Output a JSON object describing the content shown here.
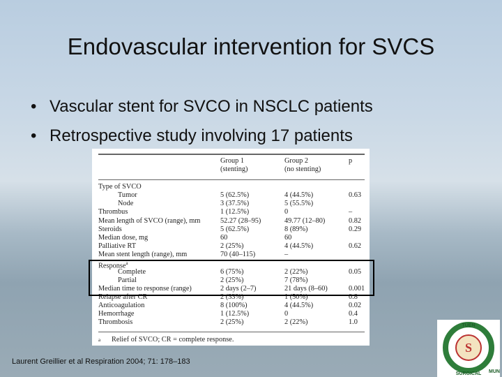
{
  "slide": {
    "title": "Endovascular intervention for SVCS",
    "bullets": [
      "Vascular stent for SVCO in NSCLC patients",
      "Retrospective study involving 17 patients"
    ],
    "citation": "Laurent Greillier et al  Respiration 2004; 71: 178–183"
  },
  "table": {
    "header": [
      [
        "Group 1",
        "(stenting)"
      ],
      [
        "Group 2",
        "(no stenting)"
      ],
      [
        "p"
      ]
    ],
    "rows": [
      [
        "Type of SVCO"
      ],
      [
        "Tumor",
        "5 (62.5%)",
        "4 (44.5%)",
        "0.63"
      ],
      [
        "Node",
        "3 (37.5%)",
        "5 (55.5%)"
      ],
      [
        "Thrombus",
        "1 (12.5%)",
        "0",
        "–"
      ],
      [
        "Mean length of SVCO (range), mm",
        "52.27 (28–95)",
        "49.77 (12–80)",
        "0.82"
      ],
      [
        "Steroids",
        "5 (62.5%)",
        "8 (89%)",
        "0.29"
      ],
      [
        "Median dose, mg",
        "60",
        "60"
      ],
      [
        "Palliative RT",
        "2 (25%)",
        "4 (44.5%)",
        "0.62"
      ],
      [
        "Mean stent length (range), mm",
        "70 (40–115)",
        "–"
      ],
      [
        "Response",
        "",
        ""
      ],
      [
        "Complete",
        "6 (75%)",
        "2 (22%)",
        "0.05"
      ],
      [
        "Partial",
        "2 (25%)",
        "7 (78%)"
      ],
      [
        "Median time to response (range)",
        "2 days (2–7)",
        "21 days (8–60)",
        "0.001"
      ],
      [
        "Relapse after CR",
        "2 (33%)",
        "1 (50%)",
        "0.8"
      ],
      [
        "Anticoagulation",
        "8 (100%)",
        "4 (44.5%)",
        "0.02"
      ],
      [
        "Hemorrhage",
        "1 (12.5%)",
        "0",
        "0.4"
      ],
      [
        "Thrombosis",
        "2 (25%)",
        "2 (22%)",
        "1.0"
      ]
    ],
    "response_marker": "a",
    "footnote_marker": "a",
    "footnote": "Relief of SVCO; CR = complete response."
  },
  "logo": {
    "top_text": "TUEN",
    "bottom_text": "SURGICAL",
    "right_text": "MUN",
    "emblem": "S"
  }
}
